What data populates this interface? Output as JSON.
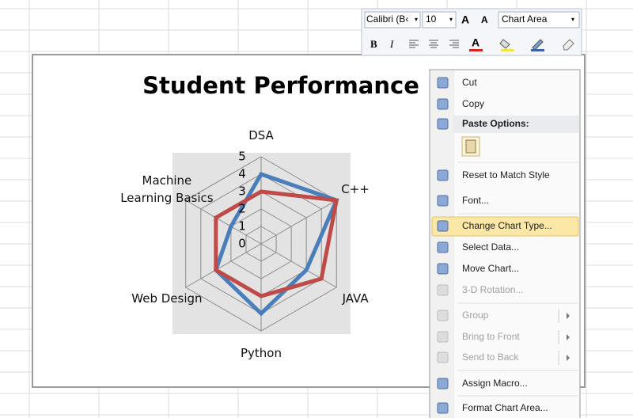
{
  "chart_data": {
    "type": "radar",
    "title": "Student Performance",
    "categories": [
      "DSA",
      "C++",
      "JAVA",
      "Python",
      "Web Design",
      "Machine Learning Basics"
    ],
    "series": [
      {
        "color": "#4a7ebb",
        "values": [
          4,
          5,
          3,
          4,
          3,
          2
        ]
      },
      {
        "color": "#be4b48",
        "values": [
          3,
          5,
          4,
          3,
          3,
          3
        ]
      }
    ],
    "rlim": [
      0,
      5
    ],
    "rticks": [
      0,
      1,
      2,
      3,
      4,
      5
    ],
    "grid": true
  },
  "toolbar": {
    "font": "Calibri (B‹",
    "size": "10",
    "element": "Chart Area",
    "bold": "B",
    "italic": "I"
  },
  "context_menu": {
    "items": [
      {
        "label": "Cut"
      },
      {
        "label": "Copy"
      },
      {
        "label": "Paste Options:"
      },
      {
        "label": "Reset to Match Style"
      },
      {
        "label": "Font..."
      },
      {
        "label": "Change Chart Type...",
        "highlighted": true
      },
      {
        "label": "Select Data..."
      },
      {
        "label": "Move Chart..."
      },
      {
        "label": "3-D Rotation...",
        "disabled": true
      },
      {
        "label": "Group",
        "disabled": true,
        "submenu": true
      },
      {
        "label": "Bring to Front",
        "disabled": true,
        "submenu": true
      },
      {
        "label": "Send to Back",
        "disabled": true,
        "submenu": true
      },
      {
        "label": "Assign Macro..."
      },
      {
        "label": "Format Chart Area..."
      }
    ]
  }
}
